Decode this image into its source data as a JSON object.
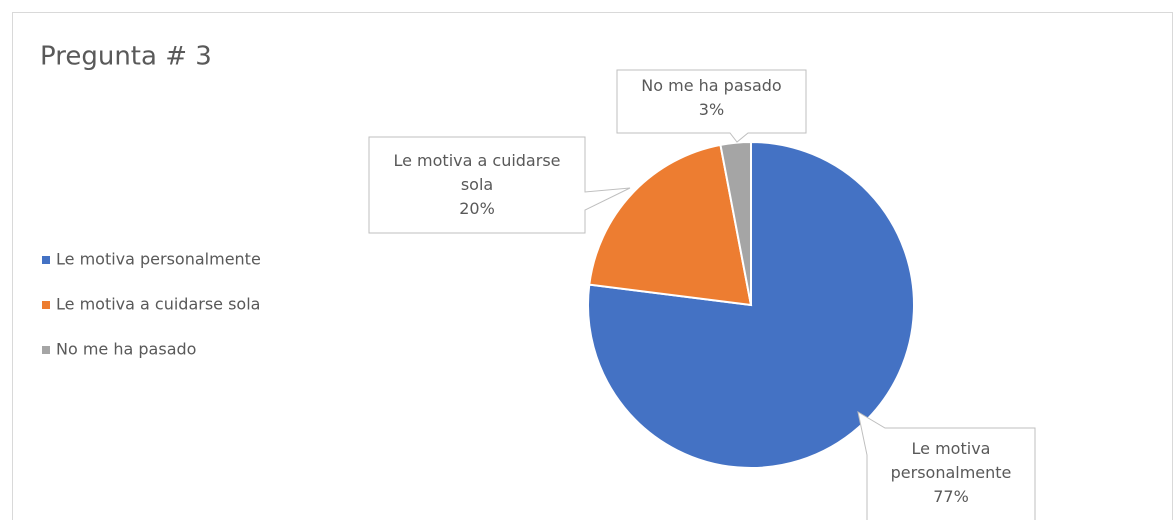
{
  "chart_data": {
    "type": "pie",
    "title": "Pregunta # 3",
    "categories": [
      "Le motiva personalmente",
      "Le motiva a cuidarse sola",
      "No me ha pasado"
    ],
    "values": [
      77,
      20,
      3
    ],
    "value_labels": [
      "77%",
      "20%",
      "3%"
    ],
    "colors": [
      "#4472c4",
      "#ed7d31",
      "#a5a5a5"
    ],
    "legend": "left"
  }
}
